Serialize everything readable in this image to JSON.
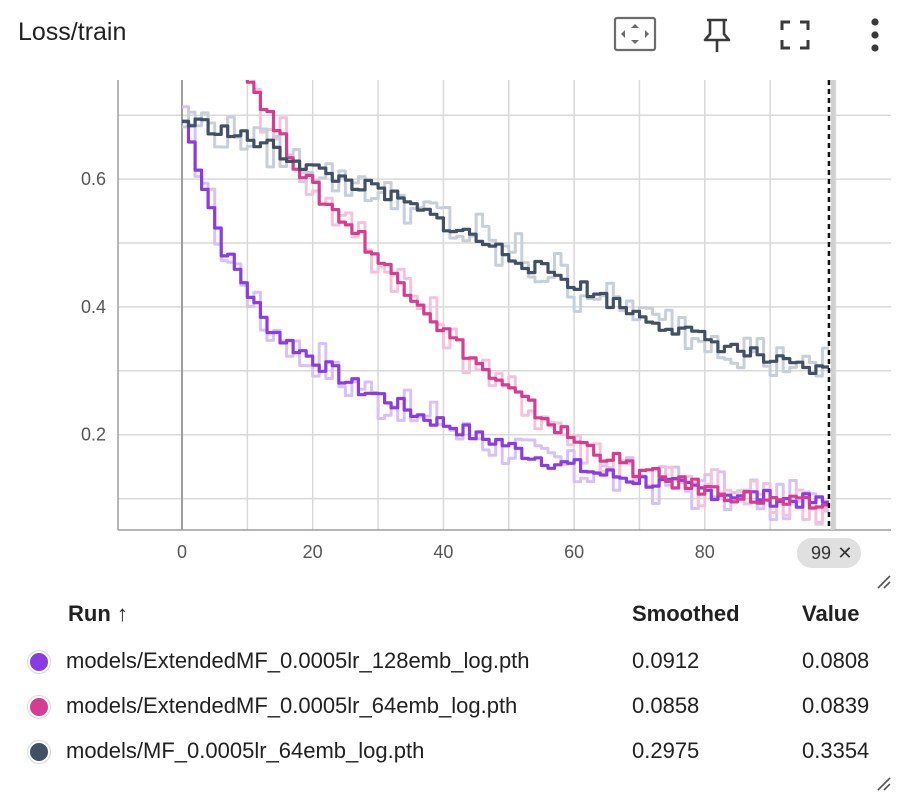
{
  "card": {
    "title": "Loss/train"
  },
  "toolbar": {
    "icons": [
      "fit-domain-icon",
      "pin-icon",
      "fullscreen-icon",
      "more-vert-icon"
    ]
  },
  "step_badge": {
    "label": "99",
    "close": "✕"
  },
  "table": {
    "headers": {
      "run": "Run",
      "sort_arrow": "↑",
      "smoothed": "Smoothed",
      "value": "Value"
    },
    "rows": [
      {
        "run": "models/ExtendedMF_0.0005lr_128emb_log.pth",
        "color": "#8a3ce0",
        "smoothed": "0.0912",
        "value": "0.0808"
      },
      {
        "run": "models/ExtendedMF_0.0005lr_64emb_log.pth",
        "color": "#d63c92",
        "smoothed": "0.0858",
        "value": "0.0839"
      },
      {
        "run": "models/MF_0.0005lr_64emb_log.pth",
        "color": "#425066",
        "smoothed": "0.2975",
        "value": "0.3354"
      }
    ]
  },
  "chart_data": {
    "type": "line",
    "title": "Loss/train",
    "xlabel": "",
    "ylabel": "",
    "xlim": [
      -10,
      109
    ],
    "ylim": [
      0.055,
      0.775
    ],
    "xticks": [
      0,
      20,
      40,
      60,
      80
    ],
    "yticks": [
      0.2,
      0.4,
      0.6
    ],
    "grid": true,
    "cursor_step": 99,
    "series": [
      {
        "name": "models/ExtendedMF_0.0005lr_128emb_log.pth",
        "color": "#8a3ce0",
        "raw_color": "#d7c2f5",
        "x": [
          0,
          3,
          6,
          9,
          12,
          15,
          18,
          21,
          24,
          27,
          30,
          33,
          36,
          39,
          42,
          45,
          48,
          51,
          54,
          57,
          60,
          63,
          66,
          69,
          72,
          75,
          78,
          81,
          84,
          87,
          90,
          93,
          96,
          99
        ],
        "smoothed": [
          0.69,
          0.59,
          0.49,
          0.44,
          0.38,
          0.35,
          0.33,
          0.31,
          0.29,
          0.27,
          0.26,
          0.245,
          0.23,
          0.22,
          0.21,
          0.195,
          0.19,
          0.175,
          0.165,
          0.155,
          0.15,
          0.14,
          0.135,
          0.13,
          0.125,
          0.12,
          0.115,
          0.11,
          0.108,
          0.105,
          0.1,
          0.097,
          0.095,
          0.0912
        ],
        "raw": [
          0.69,
          0.6,
          0.48,
          0.45,
          0.37,
          0.36,
          0.32,
          0.32,
          0.28,
          0.28,
          0.25,
          0.25,
          0.22,
          0.23,
          0.2,
          0.2,
          0.18,
          0.18,
          0.16,
          0.16,
          0.14,
          0.15,
          0.13,
          0.14,
          0.12,
          0.13,
          0.11,
          0.12,
          0.1,
          0.11,
          0.09,
          0.1,
          0.09,
          0.0808
        ]
      },
      {
        "name": "models/ExtendedMF_0.0005lr_64emb_log.pth",
        "color": "#d63c92",
        "raw_color": "#f2c4dc",
        "x": [
          9,
          12,
          15,
          18,
          21,
          24,
          27,
          30,
          33,
          36,
          39,
          42,
          45,
          48,
          51,
          54,
          57,
          60,
          63,
          66,
          69,
          72,
          75,
          78,
          81,
          84,
          87,
          90,
          93,
          96,
          99
        ],
        "smoothed": [
          0.77,
          0.72,
          0.66,
          0.61,
          0.57,
          0.54,
          0.51,
          0.47,
          0.44,
          0.41,
          0.37,
          0.34,
          0.31,
          0.28,
          0.26,
          0.235,
          0.21,
          0.19,
          0.175,
          0.16,
          0.145,
          0.135,
          0.125,
          0.12,
          0.112,
          0.105,
          0.1,
          0.095,
          0.092,
          0.089,
          0.0858
        ],
        "raw": [
          0.78,
          0.7,
          0.68,
          0.6,
          0.58,
          0.53,
          0.52,
          0.46,
          0.45,
          0.4,
          0.38,
          0.33,
          0.32,
          0.27,
          0.27,
          0.23,
          0.22,
          0.18,
          0.18,
          0.15,
          0.15,
          0.13,
          0.13,
          0.11,
          0.12,
          0.1,
          0.11,
          0.09,
          0.1,
          0.08,
          0.0839
        ]
      },
      {
        "name": "models/MF_0.0005lr_64emb_log.pth",
        "color": "#425066",
        "raw_color": "#c7cfdb",
        "x": [
          0,
          3,
          6,
          9,
          12,
          15,
          18,
          21,
          24,
          27,
          30,
          33,
          36,
          39,
          42,
          45,
          48,
          51,
          54,
          57,
          60,
          63,
          66,
          69,
          72,
          75,
          78,
          81,
          84,
          87,
          90,
          93,
          96,
          99
        ],
        "smoothed": [
          0.69,
          0.685,
          0.675,
          0.665,
          0.655,
          0.64,
          0.625,
          0.61,
          0.6,
          0.59,
          0.58,
          0.565,
          0.55,
          0.535,
          0.52,
          0.505,
          0.49,
          0.475,
          0.46,
          0.45,
          0.435,
          0.42,
          0.405,
          0.39,
          0.38,
          0.365,
          0.355,
          0.345,
          0.335,
          0.325,
          0.315,
          0.305,
          0.3,
          0.2975
        ],
        "raw": [
          0.69,
          0.69,
          0.67,
          0.67,
          0.65,
          0.64,
          0.62,
          0.62,
          0.59,
          0.6,
          0.57,
          0.57,
          0.54,
          0.55,
          0.51,
          0.52,
          0.48,
          0.49,
          0.45,
          0.46,
          0.42,
          0.43,
          0.4,
          0.4,
          0.37,
          0.38,
          0.35,
          0.36,
          0.33,
          0.34,
          0.31,
          0.32,
          0.29,
          0.3354
        ]
      }
    ]
  }
}
